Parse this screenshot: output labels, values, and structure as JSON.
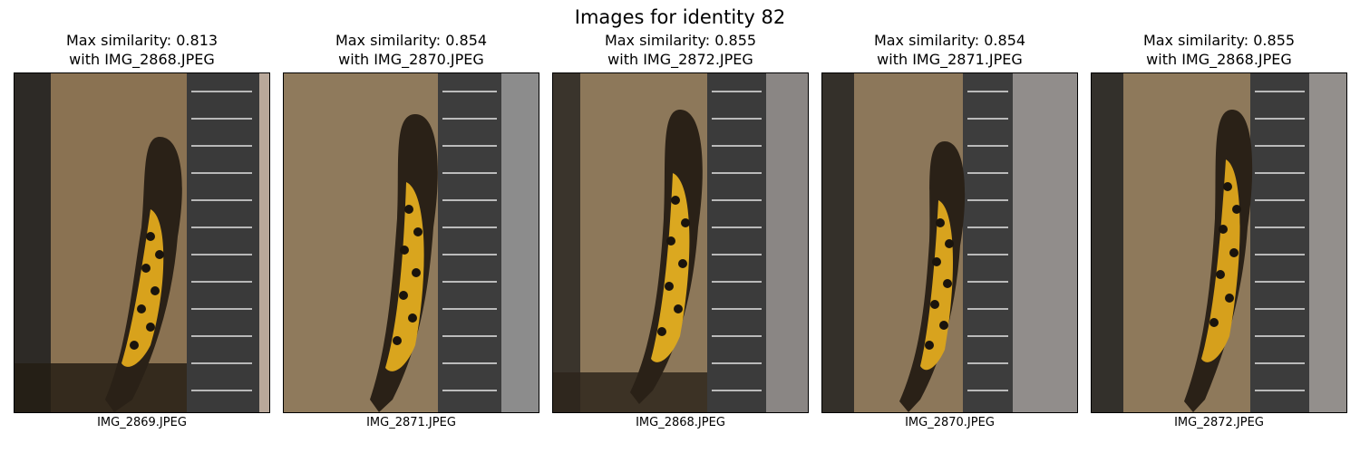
{
  "figure": {
    "title": "Images for identity 82"
  },
  "panels": [
    {
      "line1": "Max similarity: 0.813",
      "line2": "with IMG_2868.JPEG",
      "caption": "IMG_2869.JPEG"
    },
    {
      "line1": "Max similarity: 0.854",
      "line2": "with IMG_2870.JPEG",
      "caption": "IMG_2871.JPEG"
    },
    {
      "line1": "Max similarity: 0.855",
      "line2": "with IMG_2872.JPEG",
      "caption": "IMG_2868.JPEG"
    },
    {
      "line1": "Max similarity: 0.854",
      "line2": "with IMG_2871.JPEG",
      "caption": "IMG_2870.JPEG"
    },
    {
      "line1": "Max similarity: 0.855",
      "line2": "with IMG_2868.JPEG",
      "caption": "IMG_2872.JPEG"
    }
  ]
}
